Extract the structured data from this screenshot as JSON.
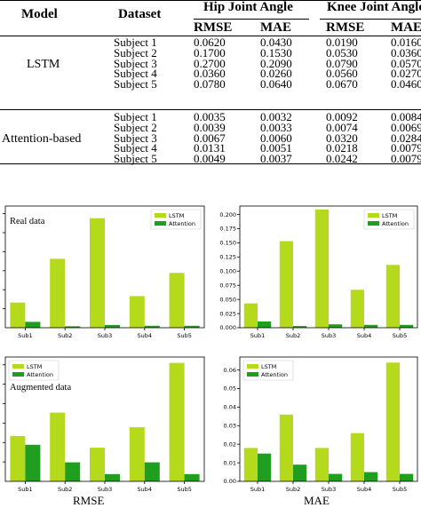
{
  "table": {
    "headers": {
      "model": "Model",
      "dataset": "Dataset",
      "hip": "Hip Joint Angle",
      "knee": "Knee Joint Angle",
      "rmse": "RMSE",
      "mae": "MAE"
    },
    "groups": [
      {
        "model": "LSTM",
        "rows": [
          {
            "subject": "Subject 1",
            "hip_rmse": "0.0620",
            "hip_mae": "0.0430",
            "knee_rmse": "0.0190",
            "knee_mae": "0.0160"
          },
          {
            "subject": "Subject 2",
            "hip_rmse": "0.1700",
            "hip_mae": "0.1530",
            "knee_rmse": "0.0530",
            "knee_mae": "0.0360"
          },
          {
            "subject": "Subject 3",
            "hip_rmse": "0.2700",
            "hip_mae": "0.2090",
            "knee_rmse": "0.0790",
            "knee_mae": "0.0570"
          },
          {
            "subject": "Subject 4",
            "hip_rmse": "0.0360",
            "hip_mae": "0.0260",
            "knee_rmse": "0.0560",
            "knee_mae": "0.0270"
          },
          {
            "subject": "Subject 5",
            "hip_rmse": "0.0780",
            "hip_mae": "0.0640",
            "knee_rmse": "0.0670",
            "knee_mae": "0.0460"
          }
        ]
      },
      {
        "model": "Attention-based",
        "rows": [
          {
            "subject": "Subject 1",
            "hip_rmse": "0.0035",
            "hip_mae": "0.0032",
            "knee_rmse": "0.0092",
            "knee_mae": "0.0084"
          },
          {
            "subject": "Subject 2",
            "hip_rmse": "0.0039",
            "hip_mae": "0.0033",
            "knee_rmse": "0.0074",
            "knee_mae": "0.0069"
          },
          {
            "subject": "Subject 3",
            "hip_rmse": "0.0067",
            "hip_mae": "0.0060",
            "knee_rmse": "0.0320",
            "knee_mae": "0.0284"
          },
          {
            "subject": "Subject 4",
            "hip_rmse": "0.0131",
            "hip_mae": "0.0051",
            "knee_rmse": "0.0218",
            "knee_mae": "0.0079"
          },
          {
            "subject": "Subject 5",
            "hip_rmse": "0.0049",
            "hip_mae": "0.0037",
            "knee_rmse": "0.0242",
            "knee_mae": "0.0079"
          }
        ]
      }
    ]
  },
  "colors": {
    "lstm": "#b5d91b",
    "attention": "#1f9e1f"
  },
  "captions": {
    "left": "RMSE",
    "right": "MAE"
  },
  "chart_data": [
    {
      "type": "bar",
      "categories": [
        "Sub1",
        "Sub2",
        "Sub3",
        "Sub4",
        "Sub5"
      ],
      "series": [
        {
          "name": "LSTM",
          "values": [
            0.062,
            0.17,
            0.27,
            0.078,
            0.135
          ]
        },
        {
          "name": "Attention",
          "values": [
            0.0145,
            0.0035,
            0.0067,
            0.0049,
            0.0049
          ]
        }
      ],
      "annotation": "Real data",
      "ylim": [
        0,
        0.3
      ],
      "yticks": [],
      "legend": "top-right",
      "grid": false
    },
    {
      "type": "bar",
      "categories": [
        "Sub1",
        "Sub2",
        "Sub3",
        "Sub4",
        "Sub5"
      ],
      "series": [
        {
          "name": "LSTM",
          "values": [
            0.043,
            0.153,
            0.209,
            0.067,
            0.111
          ]
        },
        {
          "name": "Attention",
          "values": [
            0.011,
            0.003,
            0.006,
            0.005,
            0.005
          ]
        }
      ],
      "ylim": [
        0,
        0.215
      ],
      "yticks": [
        "0.000",
        "0.025",
        "0.050",
        "0.075",
        "0.100",
        "0.125",
        "0.150",
        "0.175",
        "0.200"
      ],
      "legend": "top-right",
      "grid": false
    },
    {
      "type": "bar",
      "categories": [
        "Sub1",
        "Sub2",
        "Sub3",
        "Sub4",
        "Sub5"
      ],
      "series": [
        {
          "name": "LSTM",
          "values": [
            0.031,
            0.047,
            0.023,
            0.037,
            0.081
          ]
        },
        {
          "name": "Attention",
          "values": [
            0.025,
            0.013,
            0.005,
            0.013,
            0.005
          ]
        }
      ],
      "annotation": "Augmented data",
      "ylim": [
        0,
        0.085
      ],
      "yticks": [],
      "legend": "top-left",
      "grid": false
    },
    {
      "type": "bar",
      "categories": [
        "Sub1",
        "Sub2",
        "Sub3",
        "Sub4",
        "Sub5"
      ],
      "series": [
        {
          "name": "LSTM",
          "values": [
            0.018,
            0.036,
            0.018,
            0.026,
            0.064
          ]
        },
        {
          "name": "Attention",
          "values": [
            0.015,
            0.009,
            0.004,
            0.005,
            0.004
          ]
        }
      ],
      "ylim": [
        0,
        0.067
      ],
      "yticks": [
        "0.00",
        "0.01",
        "0.02",
        "0.03",
        "0.04",
        "0.05",
        "0.06"
      ],
      "legend": "top-left",
      "grid": false
    }
  ]
}
